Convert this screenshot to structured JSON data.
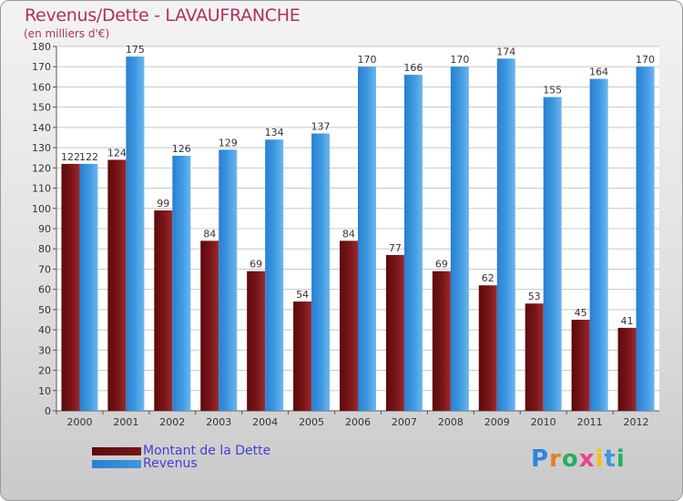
{
  "title": "Revenus/Dette - LAVAUFRANCHE",
  "unit_label": "(en milliers d'€)",
  "colors": {
    "dette": "#7a1518",
    "revenus": "#3d97df",
    "title": "#b03060",
    "legend_text": "#4040d8"
  },
  "logo": {
    "text": "Proxiti",
    "letters": [
      "P",
      "r",
      "o",
      "x",
      "i",
      "t",
      "i"
    ]
  },
  "chart_data": {
    "type": "bar",
    "categories": [
      "2000",
      "2001",
      "2002",
      "2003",
      "2004",
      "2005",
      "2006",
      "2007",
      "2008",
      "2009",
      "2010",
      "2011",
      "2012"
    ],
    "series": [
      {
        "name": "Montant de la Dette",
        "values": [
          122,
          124,
          99,
          84,
          69,
          54,
          84,
          77,
          69,
          62,
          53,
          45,
          41
        ]
      },
      {
        "name": "Revenus",
        "values": [
          122,
          175,
          126,
          129,
          134,
          137,
          170,
          166,
          170,
          174,
          155,
          164,
          170
        ]
      }
    ],
    "ylim": [
      0,
      180
    ],
    "yticks": [
      0,
      10,
      20,
      30,
      40,
      50,
      60,
      70,
      80,
      90,
      100,
      110,
      120,
      130,
      140,
      150,
      160,
      170,
      180
    ],
    "grid": true,
    "legend": "bottom-left"
  }
}
